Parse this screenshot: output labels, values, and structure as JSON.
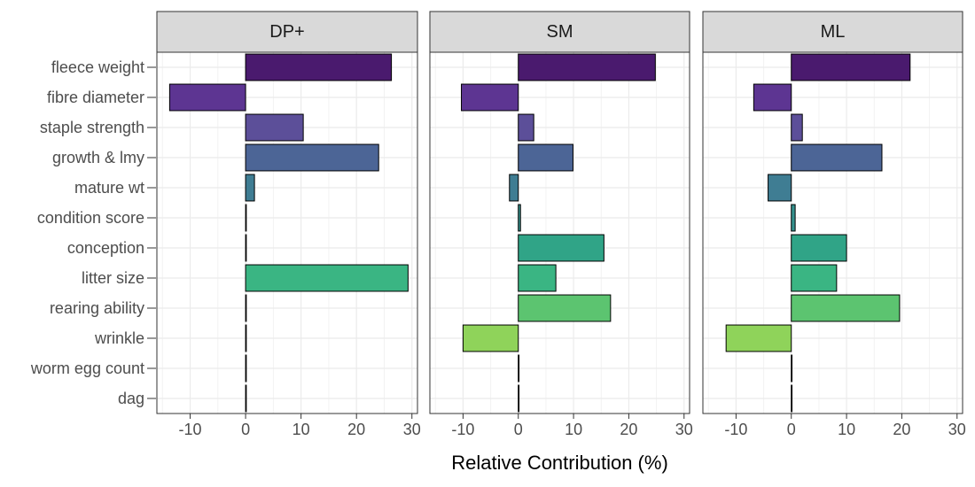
{
  "chart_data": {
    "type": "bar",
    "orientation": "horizontal",
    "facets": [
      "DP+",
      "SM",
      "ML"
    ],
    "categories": [
      "fleece weight",
      "fibre diameter",
      "staple strength",
      "growth & lmy",
      "mature wt",
      "condition score",
      "conception",
      "litter size",
      "rearing ability",
      "wrinkle",
      "worm egg count",
      "dag"
    ],
    "series": [
      {
        "facet": "DP+",
        "values": [
          26.3,
          -13.7,
          10.4,
          24.0,
          1.6,
          0,
          0,
          29.3,
          0,
          0,
          0,
          0
        ]
      },
      {
        "facet": "SM",
        "values": [
          24.8,
          -10.3,
          2.8,
          9.9,
          -1.6,
          0.4,
          15.5,
          6.8,
          16.7,
          -10.0,
          0,
          0
        ]
      },
      {
        "facet": "ML",
        "values": [
          21.5,
          -6.8,
          2.0,
          16.4,
          -4.2,
          0.7,
          10.0,
          8.2,
          19.6,
          -11.8,
          0,
          0
        ]
      }
    ],
    "xlabel": "Relative Contribution (%)",
    "ylabel": "",
    "xlim": [
      -16,
      31
    ],
    "xticks": [
      -10,
      0,
      10,
      20,
      30
    ],
    "tick_labels": [
      "-10",
      "0",
      "10",
      "20",
      "30"
    ],
    "grid": true,
    "legend": "none",
    "bar_colors": [
      "#4a1a6e",
      "#5d3592",
      "#5c4f99",
      "#4c6596",
      "#3f7d93",
      "#35928e",
      "#30a487",
      "#3ab583",
      "#5cc470",
      "#8fd35a",
      "#b9dc46",
      "#dce24a"
    ],
    "bar_edge_color": "#000000",
    "panel_strip_color": "#d9d9d9",
    "grid_color": "#ebebeb"
  }
}
